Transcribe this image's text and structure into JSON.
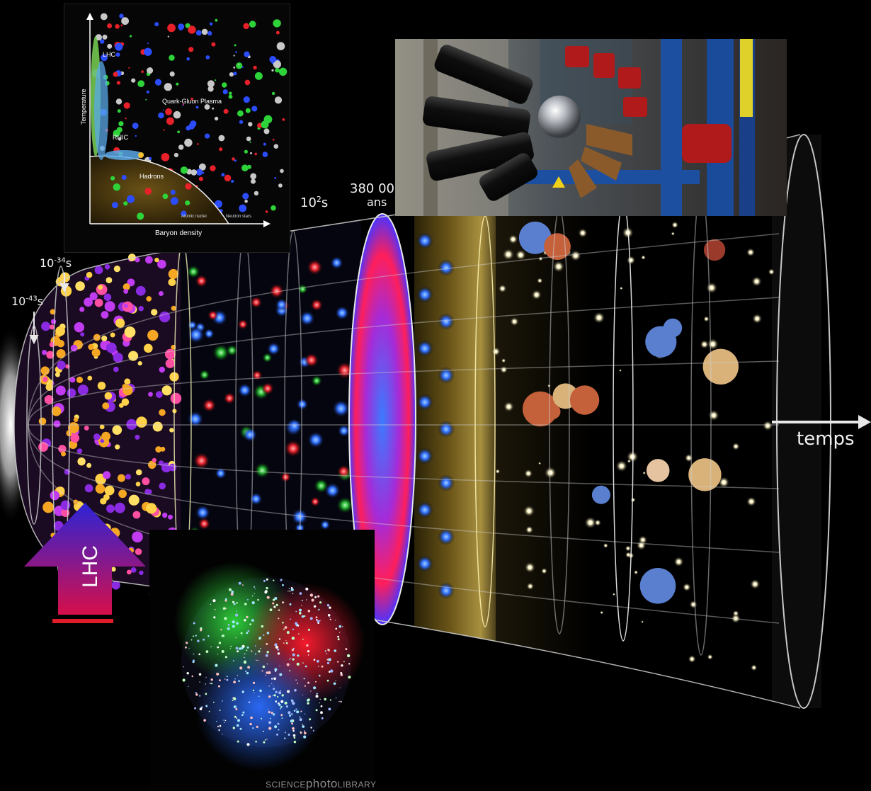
{
  "timeline": {
    "t_planck": "10-43s",
    "t_planck_base": "10",
    "t_planck_exp": "-43",
    "t_planck_unit": "s",
    "t_inflation_base": "10",
    "t_inflation_exp": "-34",
    "t_inflation_unit": "s",
    "t_nucleo_base": "10",
    "t_nucleo_exp": "2",
    "t_nucleo_unit": "s",
    "t_cmb_value": "380 00",
    "t_cmb_unit": "ans",
    "axis_label": "temps"
  },
  "lhc_marker": {
    "label": "LHC",
    "colors": {
      "top": "#2b24d6",
      "bottom": "#d60f4a"
    }
  },
  "phase_diagram": {
    "y_label": "Temperature",
    "x_label": "Baryon density",
    "qgp_label": "Quark-Gluon Plasma",
    "lhc_label": "LHC",
    "rhic_label": "RHIC",
    "hadrons_label": "Hadrons",
    "nuclei_label": "Atomic nuclei",
    "neutron_label": "Neutron stars"
  },
  "inset_image": {
    "credit_prefix": "SCIENCE",
    "credit_main": "photo",
    "credit_suffix": "LIBRARY"
  },
  "photo_icon": "detector-photo",
  "colors": {
    "background": "#000000",
    "cmb_blue": "#3d6bff",
    "cmb_red": "#ff1e5a",
    "grid": "#c8c8c8"
  }
}
